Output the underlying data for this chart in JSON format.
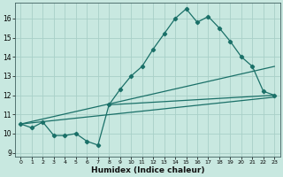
{
  "xlabel": "Humidex (Indice chaleur)",
  "bg_color": "#c8e8e0",
  "grid_color": "#a8d0c8",
  "line_color": "#1a7068",
  "xlim": [
    -0.5,
    23.5
  ],
  "ylim": [
    8.8,
    16.8
  ],
  "yticks": [
    9,
    10,
    11,
    12,
    13,
    14,
    15,
    16
  ],
  "xticks": [
    0,
    1,
    2,
    3,
    4,
    5,
    6,
    7,
    8,
    9,
    10,
    11,
    12,
    13,
    14,
    15,
    16,
    17,
    18,
    19,
    20,
    21,
    22,
    23
  ],
  "series1_x": [
    0,
    1,
    2,
    3,
    4,
    5,
    6,
    7,
    8,
    9,
    10,
    11,
    12,
    13,
    14,
    15,
    16,
    17,
    18,
    19,
    20,
    21,
    22,
    23
  ],
  "series1_y": [
    10.5,
    10.3,
    10.6,
    9.9,
    9.9,
    10.0,
    9.6,
    9.4,
    11.5,
    12.3,
    13.0,
    13.5,
    14.4,
    15.2,
    16.0,
    16.5,
    15.8,
    16.1,
    15.5,
    14.8,
    14.0,
    13.5,
    12.2,
    12.0
  ],
  "series2_x": [
    0,
    23
  ],
  "series2_y": [
    10.5,
    11.9
  ],
  "series3_x": [
    0,
    23
  ],
  "series3_y": [
    10.5,
    13.5
  ],
  "series4_x": [
    8,
    23
  ],
  "series4_y": [
    11.5,
    12.0
  ]
}
